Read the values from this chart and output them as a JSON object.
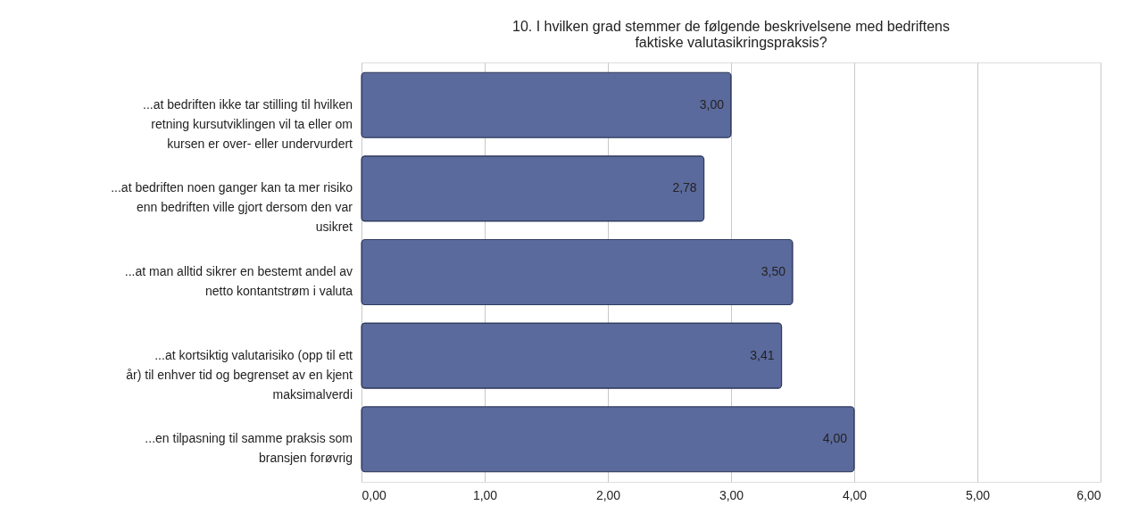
{
  "chart_data": {
    "type": "bar",
    "orientation": "horizontal",
    "title": "10. I hvilken grad stemmer de følgende beskrivelsene med bedriftens faktiske valutasikringspraksis?",
    "categories": [
      "...at bedriften ikke tar stilling til hvilken retning kursutviklingen vil ta eller om kursen er over- eller undervurdert",
      "...at bedriften noen ganger kan ta mer risiko enn bedriften ville gjort dersom den var usikret",
      "...at man alltid sikrer en bestemt andel av netto kontantstrøm i valuta",
      "...at kortsiktig valutarisiko (opp til ett år) til enhver tid og begrenset av en kjent maksimalverdi",
      "...en tilpasning til samme praksis som bransjen forøvrig"
    ],
    "values": [
      3.0,
      2.78,
      3.5,
      3.41,
      4.0
    ],
    "value_labels": [
      "3,00",
      "2,78",
      "3,50",
      "3,41",
      "4,00"
    ],
    "color": "#5b6a9c",
    "xlim": [
      0,
      6
    ],
    "xticks": [
      {
        "value": 0,
        "label": "0,00"
      },
      {
        "value": 1,
        "label": "1,00"
      },
      {
        "value": 2,
        "label": "2,00"
      },
      {
        "value": 3,
        "label": "3,00"
      },
      {
        "value": 4,
        "label": "4,00"
      },
      {
        "value": 5,
        "label": "5,00"
      },
      {
        "value": 6,
        "label": "6,00"
      }
    ],
    "grid": "x"
  }
}
